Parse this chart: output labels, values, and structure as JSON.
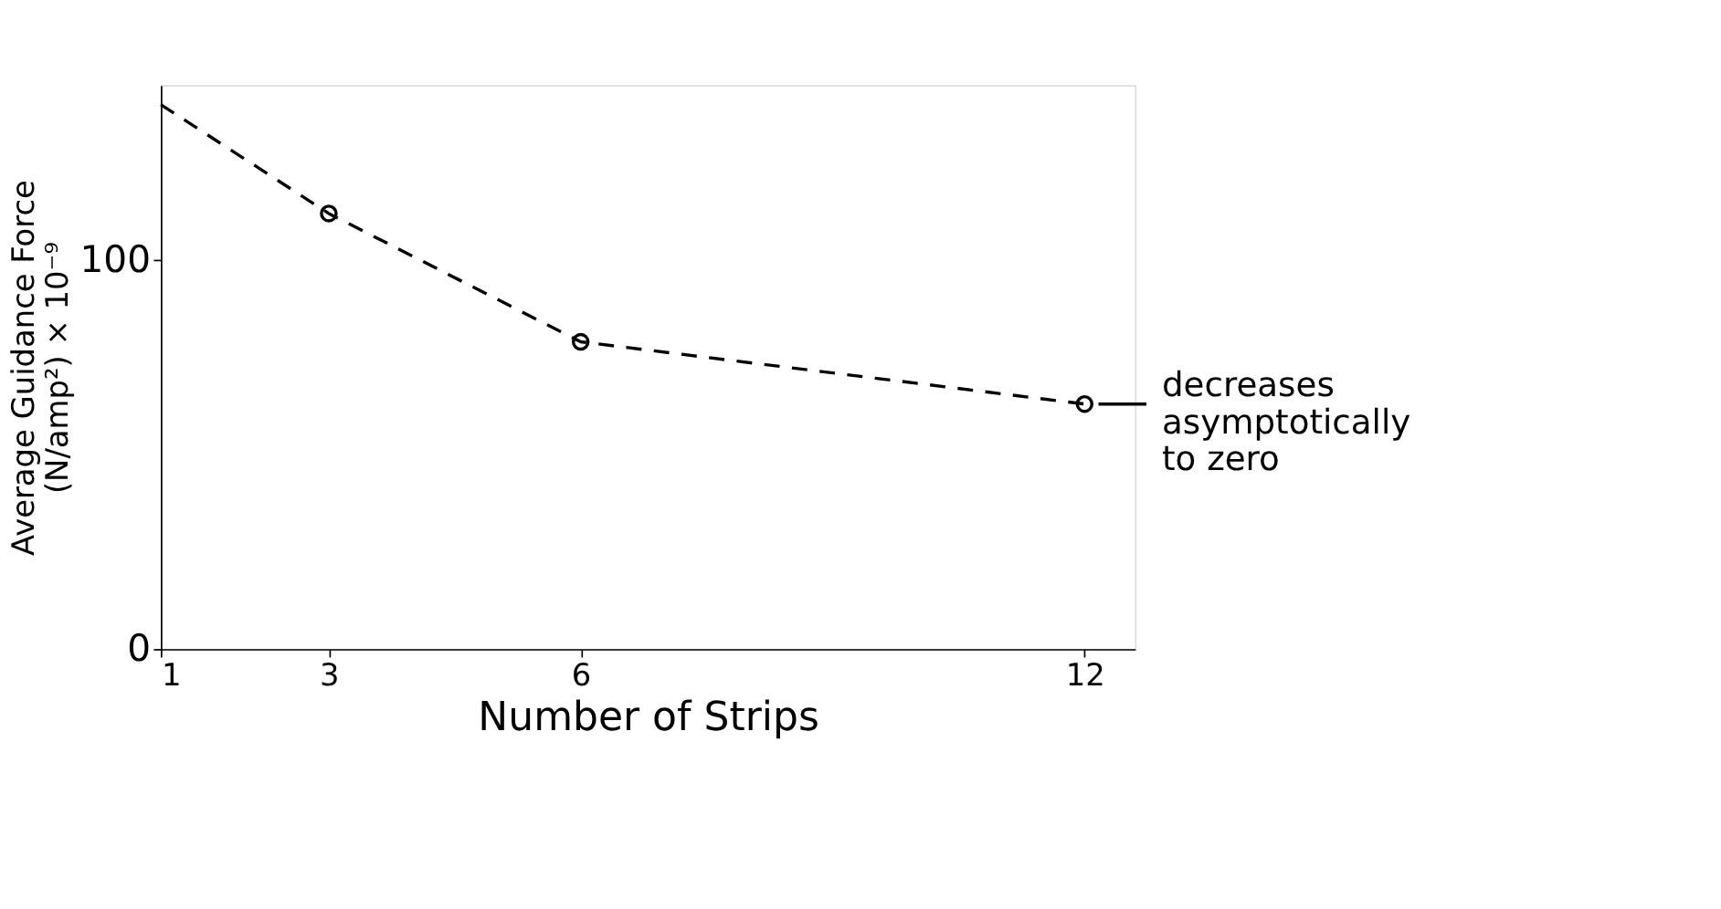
{
  "chart_data": {
    "type": "line",
    "xlabel": "Number of Strips",
    "ylabel": "Average Guidance Force\n(N/amp²) × 10⁻⁹",
    "series": [
      {
        "color": "#000000",
        "x": [
          1,
          3,
          6,
          12
        ],
        "values": [
          140,
          112,
          79,
          63
        ],
        "line_style": "dashed",
        "marker": "none"
      },
      {
        "type": "scatter",
        "color": "#000000",
        "x": [
          3,
          6,
          12
        ],
        "values": [
          112,
          79,
          63
        ],
        "marker": "circle"
      }
    ],
    "xlim": [
      1,
      12.6
    ],
    "xticks": [
      1,
      3,
      6,
      12
    ],
    "ylim": [
      0,
      145
    ],
    "yticks": [
      0,
      100
    ],
    "grid": false,
    "annotations": [
      {
        "text": "decreases\nasymptotically\nto zero",
        "x": 12,
        "y": 63
      }
    ]
  }
}
